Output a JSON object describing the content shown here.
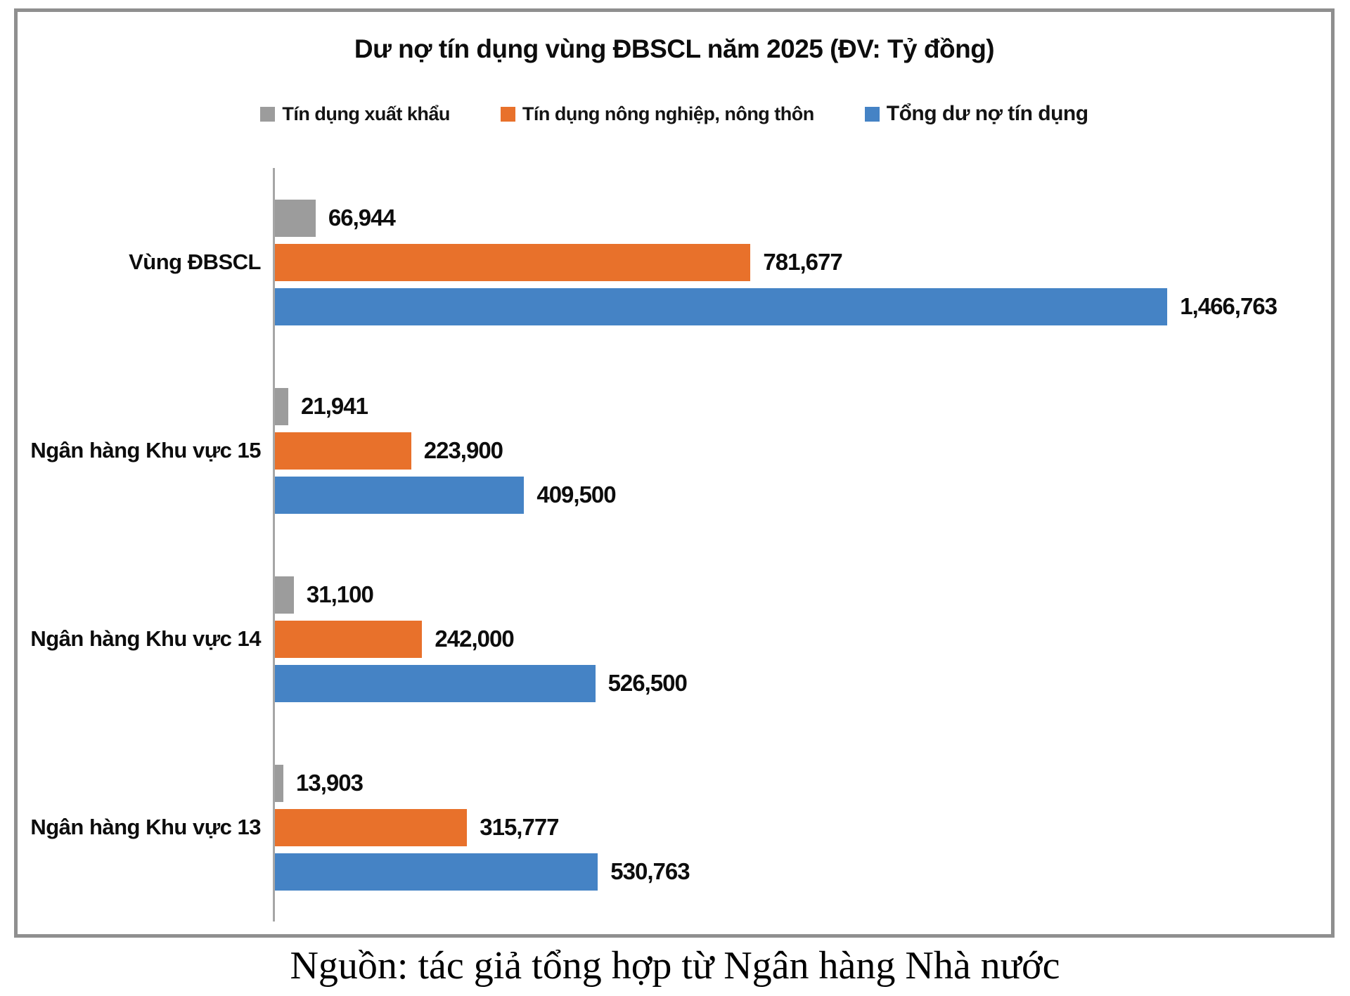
{
  "title": "Dư nợ tín dụng vùng ĐBSCL năm 2025 (ĐV: Tỷ đồng)",
  "caption": "Nguồn: tác giả tổng hợp từ Ngân hàng Nhà nước",
  "colors": {
    "export_gray": "#9c9c9c",
    "agri_orange": "#e8712b",
    "total_blue": "#4583c5",
    "axis_line": "#a6a6a6",
    "frame_border": "#8f8f8f"
  },
  "legend": [
    {
      "label": "Tín dụng xuất khẩu",
      "color": "#9c9c9c"
    },
    {
      "label": "Tín dụng nông nghiệp, nông thôn",
      "color": "#e8712b"
    },
    {
      "label": "Tổng dư nợ tín dụng",
      "color": "#4583c5"
    }
  ],
  "chart_data": {
    "type": "bar",
    "orientation": "horizontal",
    "title": "Dư nợ tín dụng vùng ĐBSCL năm 2025 (ĐV: Tỷ đồng)",
    "unit": "Tỷ đồng",
    "legend_position": "top",
    "grid": false,
    "xlim": [
      0,
      1730000
    ],
    "categories": [
      "Vùng ĐBSCL",
      "Ngân hàng Khu vực 15",
      "Ngân hàng Khu vực 14",
      "Ngân hàng Khu vực 13"
    ],
    "series": [
      {
        "key": "xuat-khau",
        "name": "Tín dụng xuất khẩu",
        "color": "#9c9c9c",
        "values": [
          66944,
          21941,
          31100,
          13903
        ]
      },
      {
        "key": "nong-nghiep",
        "name": "Tín dụng nông nghiệp, nông thôn",
        "color": "#e8712b",
        "values": [
          781677,
          223900,
          242000,
          315777
        ]
      },
      {
        "key": "tong-du-no",
        "name": "Tổng dư nợ tín dụng",
        "color": "#4583c5",
        "values": [
          1466763,
          409500,
          526500,
          530763
        ]
      }
    ],
    "value_labels": [
      [
        "66,944",
        "781,677",
        "1,466,763"
      ],
      [
        "21,941",
        "223,900",
        "409,500"
      ],
      [
        "31,100",
        "242,000",
        "526,500"
      ],
      [
        "13,903",
        "315,777",
        "530,763"
      ]
    ]
  }
}
